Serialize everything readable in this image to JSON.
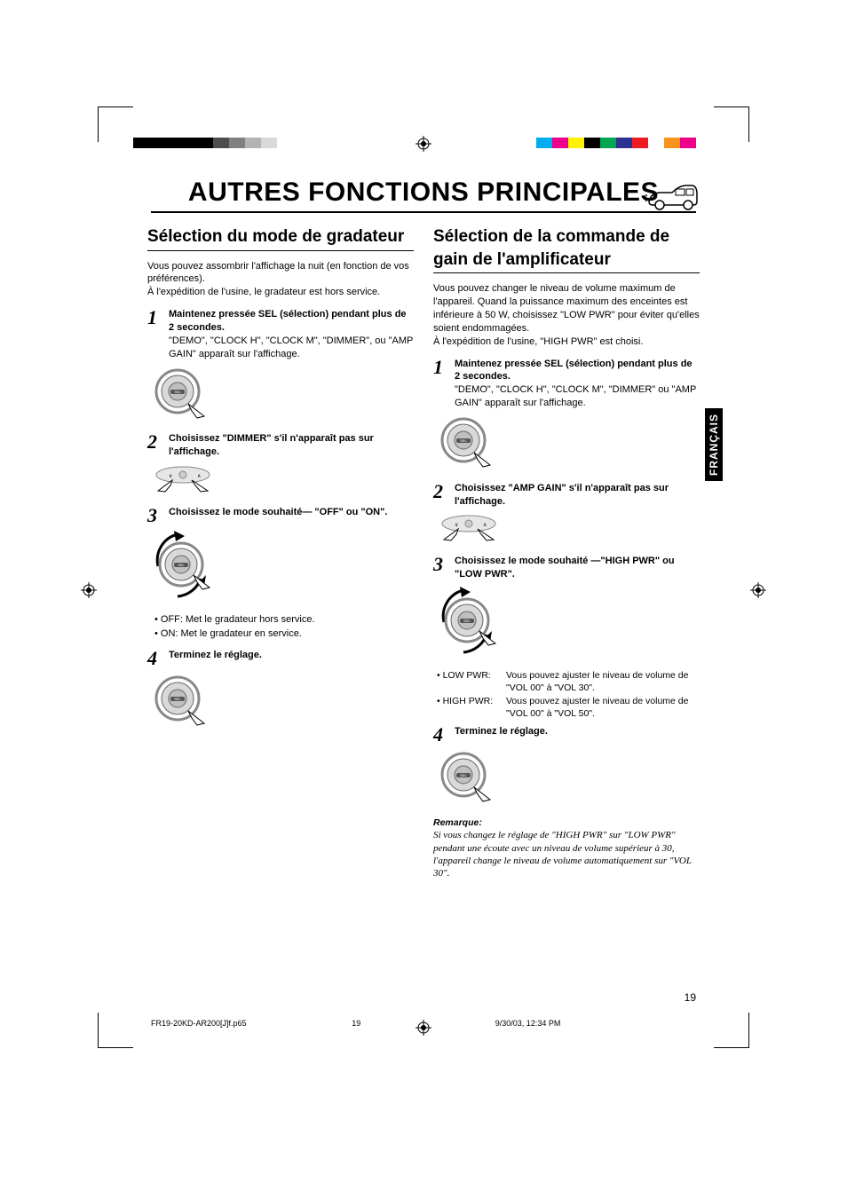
{
  "colorbar_left": [
    "#000000",
    "#000000",
    "#000000",
    "#000000",
    "#000000",
    "#4d4d4d",
    "#808080",
    "#b3b3b3",
    "#d9d9d9",
    "#ffffff"
  ],
  "colorbar_right": [
    "#00aeef",
    "#ec008c",
    "#fff200",
    "#000000",
    "#00a651",
    "#2e3192",
    "#ed1c24",
    "#ffffff",
    "#f7941d",
    "#ec008c"
  ],
  "title": "AUTRES FONCTIONS PRINCIPALES",
  "sidetab": "FRANÇAIS",
  "page_number": "19",
  "footer": {
    "file": "FR19-20KD-AR200[J]f.p65",
    "page": "19",
    "datetime": "9/30/03, 12:34 PM"
  },
  "left": {
    "heading": "Sélection du mode de gradateur",
    "intro1": "Vous pouvez assombrir l'affichage la nuit (en fonction de vos préférences).",
    "intro2": "À l'expédition de l'usine, le gradateur est hors service.",
    "s1_lead": "Maintenez pressée SEL (sélection) pendant plus de 2 secondes.",
    "s1_rest": "\"DEMO\", \"CLOCK H\", \"CLOCK M\", \"DIMMER\", ou \"AMP GAIN\" apparaît sur l'affichage.",
    "s2_lead": "Choisissez \"DIMMER\" s'il n'apparaît pas sur l'affichage.",
    "s3_lead": "Choisissez le mode souhaité— \"OFF\" ou \"ON\".",
    "b1": "• OFF:  Met le gradateur hors service.",
    "b2": "• ON:   Met le gradateur en service.",
    "s4_lead": "Terminez le réglage."
  },
  "right": {
    "heading": "Sélection de la commande de gain de l'amplificateur",
    "intro1": "Vous pouvez changer le niveau de volume maximum de l'appareil. Quand la puissance maximum des enceintes est inférieure à 50 W, choisissez \"LOW PWR\" pour éviter qu'elles soient endommagées.",
    "intro2": "À l'expédition de l'usine, \"HIGH PWR\" est choisi.",
    "s1_lead": "Maintenez pressée SEL (sélection) pendant plus de 2 secondes.",
    "s1_rest": "\"DEMO\", \"CLOCK H\", \"CLOCK M\", \"DIMMER\" ou \"AMP GAIN\" apparaît sur l'affichage.",
    "s2_lead": "Choisissez \"AMP GAIN\" s'il n'apparaît pas sur l'affichage.",
    "s3_lead": "Choisissez le mode souhaité —\"HIGH PWR\" ou \"LOW PWR\".",
    "low_lbl": "• LOW PWR:",
    "low_txt": "Vous pouvez ajuster le niveau de volume de \"VOL 00\" à \"VOL 30\".",
    "high_lbl": "• HIGH PWR:",
    "high_txt": "Vous pouvez ajuster le niveau de volume de \"VOL 00\" à \"VOL 50\".",
    "s4_lead": "Terminez le réglage.",
    "note_h": "Remarque:",
    "note_b": "Si vous changez le réglage de \"HIGH PWR\" sur \"LOW PWR\" pendant une écoute avec un niveau de volume supérieur à 30, l'appareil change le niveau de volume automatiquement sur \"VOL 30\"."
  }
}
